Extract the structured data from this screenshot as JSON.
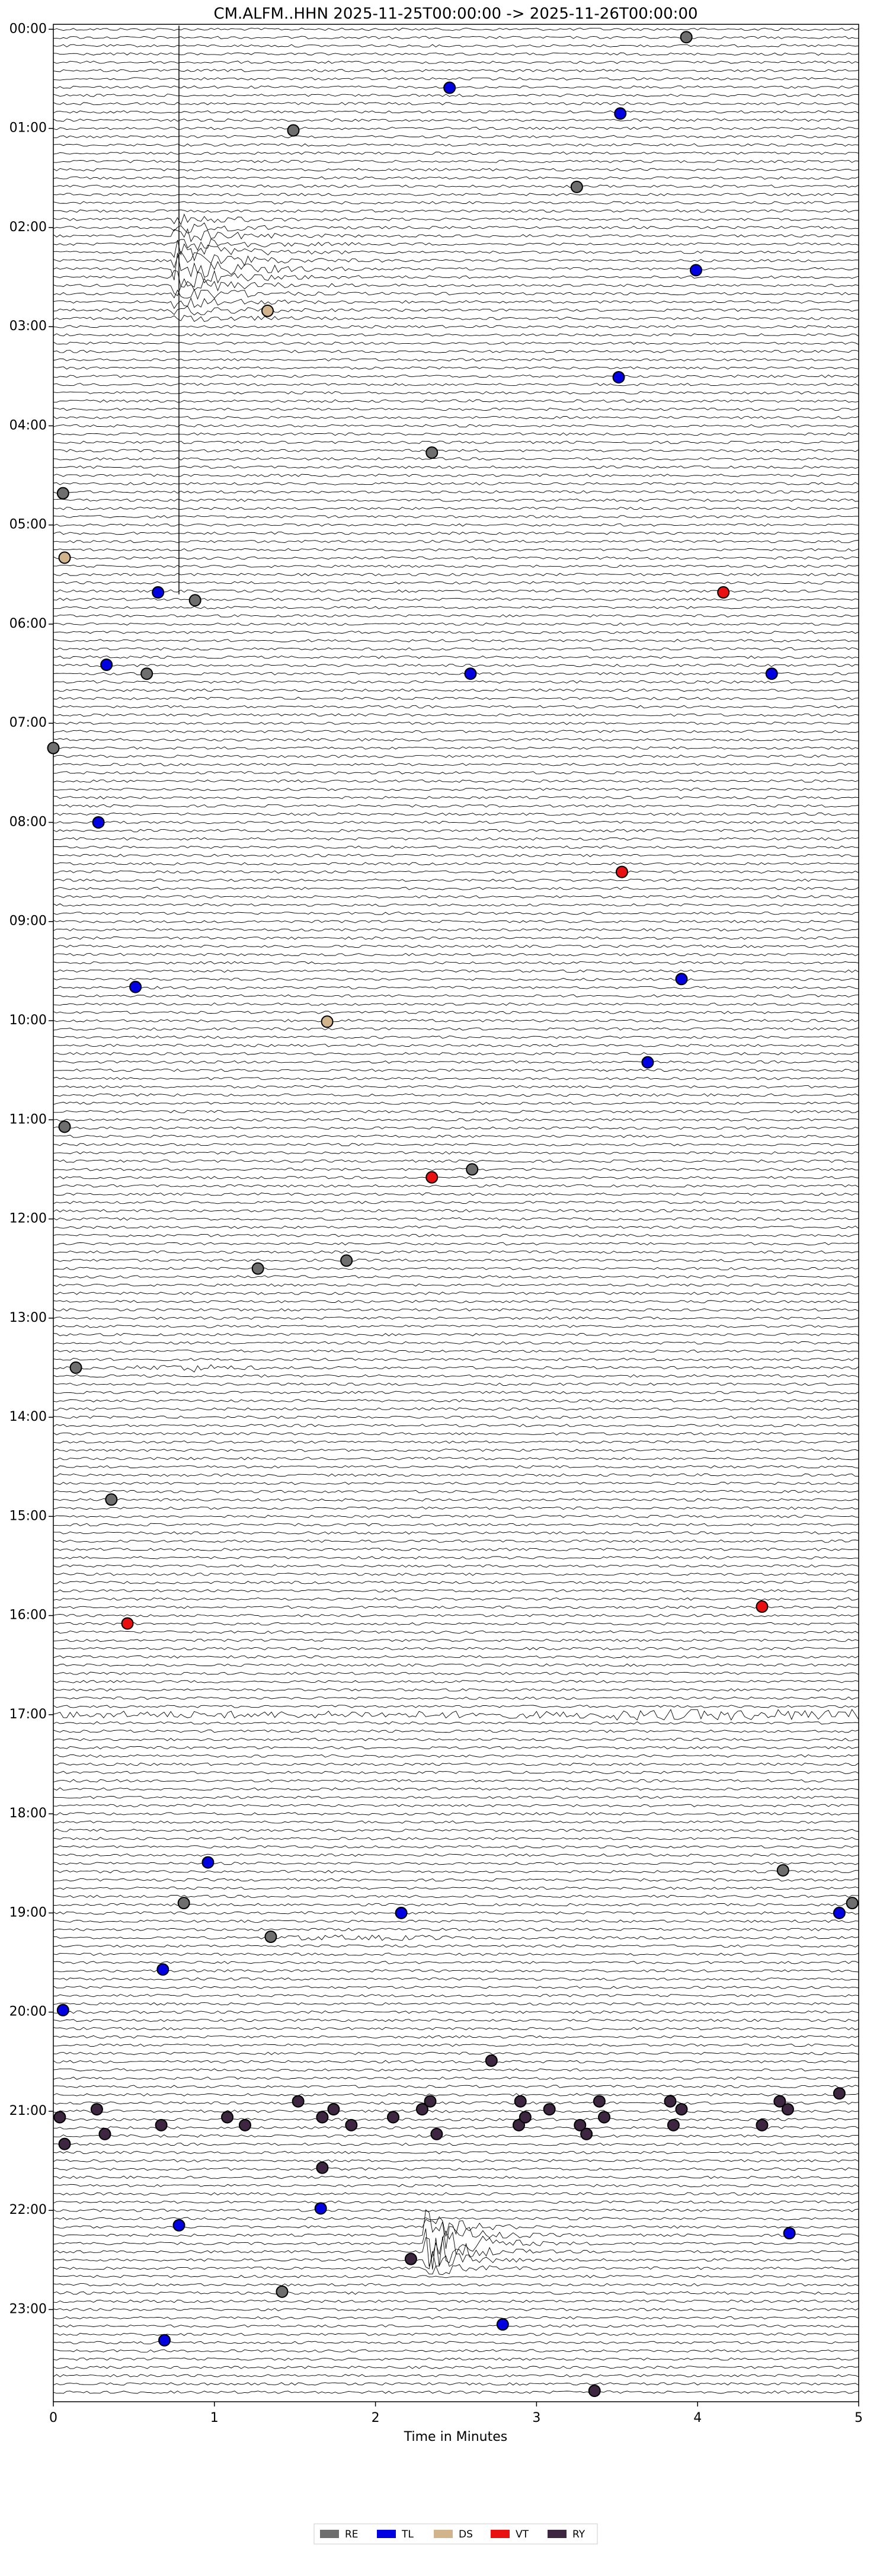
{
  "chart_data": {
    "type": "scatter",
    "title": "CM.ALFM..HHN  2025-11-25T00:00:00 -> 2025-11-26T00:00:00",
    "x_label": "Time in Minutes",
    "xlim": [
      0,
      5
    ],
    "xticks": [
      0,
      1,
      2,
      3,
      4,
      5
    ],
    "ylim": [
      -0.05,
      23.93
    ],
    "y_inverted": true,
    "yticks": [
      {
        "value": 0,
        "label": "00:00"
      },
      {
        "value": 1,
        "label": "01:00"
      },
      {
        "value": 2,
        "label": "02:00"
      },
      {
        "value": 3,
        "label": "03:00"
      },
      {
        "value": 4,
        "label": "04:00"
      },
      {
        "value": 5,
        "label": "05:00"
      },
      {
        "value": 6,
        "label": "06:00"
      },
      {
        "value": 7,
        "label": "07:00"
      },
      {
        "value": 8,
        "label": "08:00"
      },
      {
        "value": 9,
        "label": "09:00"
      },
      {
        "value": 10,
        "label": "10:00"
      },
      {
        "value": 11,
        "label": "11:00"
      },
      {
        "value": 12,
        "label": "12:00"
      },
      {
        "value": 13,
        "label": "13:00"
      },
      {
        "value": 14,
        "label": "14:00"
      },
      {
        "value": 15,
        "label": "15:00"
      },
      {
        "value": 16,
        "label": "16:00"
      },
      {
        "value": 17,
        "label": "17:00"
      },
      {
        "value": 18,
        "label": "18:00"
      },
      {
        "value": 19,
        "label": "19:00"
      },
      {
        "value": 20,
        "label": "20:00"
      },
      {
        "value": 21,
        "label": "21:00"
      },
      {
        "value": 22,
        "label": "22:00"
      },
      {
        "value": 23,
        "label": "23:00"
      }
    ],
    "series": [
      {
        "name": "RE",
        "color": "#6e6e6e",
        "x": [
          3.93,
          1.49,
          3.25,
          2.35,
          0.06,
          0.88,
          0.58,
          0.0,
          0.07,
          2.6,
          1.82,
          1.27,
          0.14,
          0.36,
          4.53,
          0.81,
          4.96,
          1.35,
          1.42
        ],
        "values": [
          0.08,
          1.02,
          1.59,
          4.27,
          4.68,
          5.76,
          6.5,
          7.25,
          11.07,
          11.5,
          12.42,
          12.5,
          13.5,
          14.83,
          18.57,
          18.9,
          18.9,
          19.24,
          22.82
        ]
      },
      {
        "name": "TL",
        "color": "#0000e0",
        "x": [
          2.46,
          3.52,
          3.99,
          3.51,
          0.65,
          0.33,
          2.59,
          4.46,
          0.28,
          0.51,
          3.9,
          3.69,
          0.96,
          2.16,
          4.88,
          0.68,
          0.06,
          1.66,
          0.78,
          4.57,
          2.79,
          0.69
        ],
        "values": [
          0.59,
          0.85,
          2.43,
          3.51,
          5.68,
          6.41,
          6.5,
          6.5,
          8.0,
          9.66,
          9.58,
          10.42,
          18.49,
          19.0,
          19.0,
          19.57,
          19.98,
          21.98,
          22.15,
          22.23,
          23.15,
          23.31
        ]
      },
      {
        "name": "DS",
        "color": "#d2b48c",
        "x": [
          1.33,
          0.07,
          1.7
        ],
        "values": [
          2.84,
          5.33,
          10.01
        ]
      },
      {
        "name": "VT",
        "color": "#e81010",
        "x": [
          4.16,
          3.53,
          2.35,
          0.46,
          4.4
        ],
        "values": [
          5.68,
          8.5,
          11.58,
          16.08,
          15.91
        ]
      },
      {
        "name": "RY",
        "color": "#3d2640",
        "x": [
          2.72,
          4.88,
          0.04,
          0.07,
          0.27,
          0.32,
          0.67,
          1.08,
          1.19,
          1.52,
          1.67,
          1.74,
          1.85,
          1.67,
          2.11,
          2.29,
          2.34,
          2.38,
          2.89,
          2.9,
          2.93,
          3.08,
          3.27,
          3.31,
          3.39,
          3.42,
          3.83,
          3.85,
          3.9,
          4.4,
          4.51,
          4.56,
          2.22,
          3.36
        ],
        "values": [
          20.49,
          20.82,
          21.06,
          21.33,
          20.98,
          21.23,
          21.14,
          21.06,
          21.14,
          20.9,
          21.06,
          20.98,
          21.14,
          21.57,
          21.06,
          20.98,
          20.9,
          21.23,
          21.14,
          20.9,
          21.06,
          20.98,
          21.14,
          21.23,
          20.9,
          21.06,
          20.9,
          21.14,
          20.98,
          21.14,
          20.9,
          20.98,
          22.49,
          23.82
        ]
      }
    ]
  }
}
